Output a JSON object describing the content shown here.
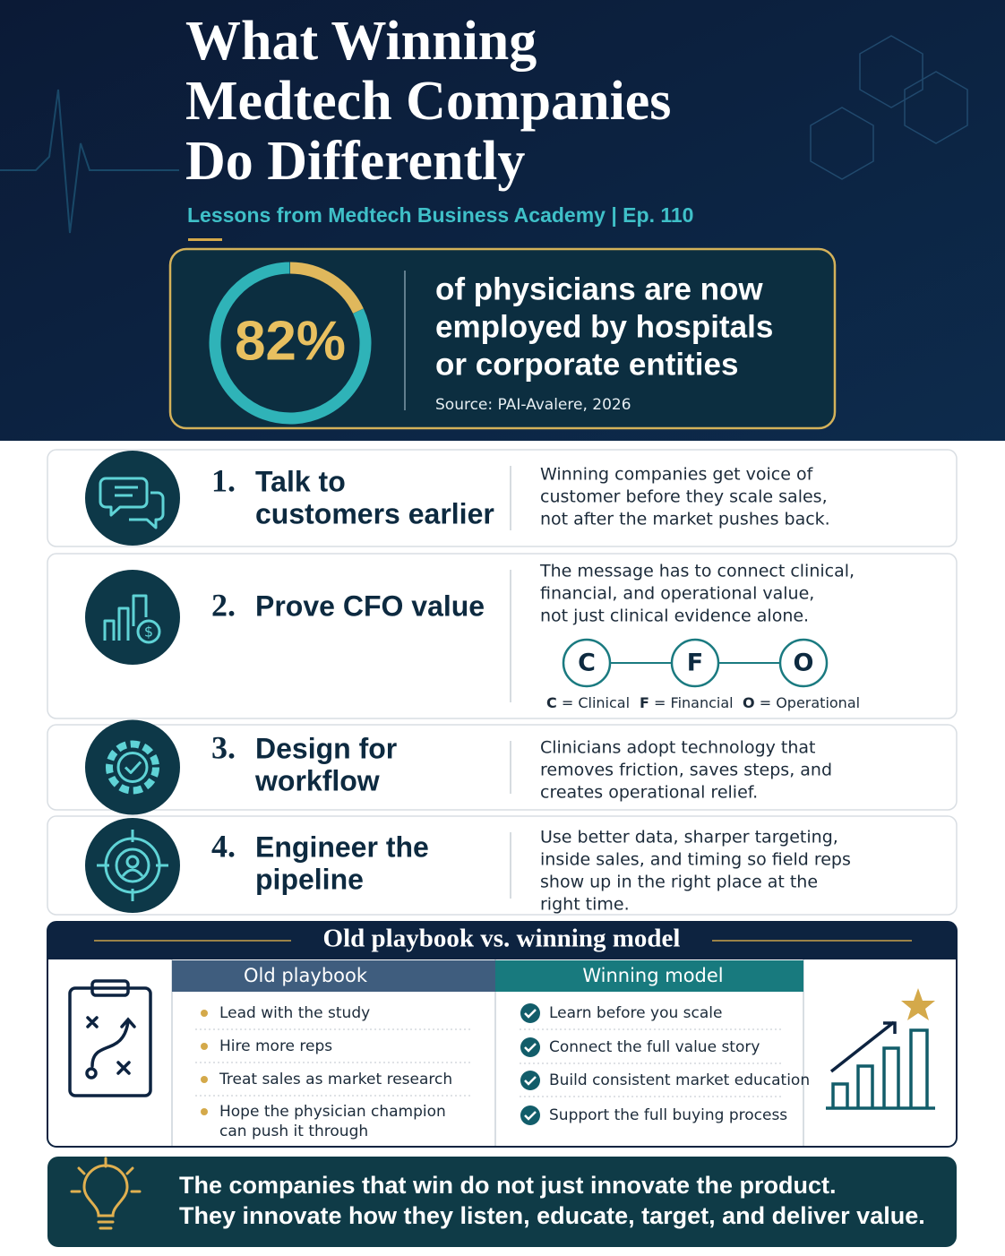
{
  "header": {
    "title_lines": [
      "What Winning",
      "Medtech Companies",
      "Do Differently"
    ],
    "subtitle": "Lessons from Medtech Business Academy | Ep. 110"
  },
  "stat": {
    "value": 82,
    "label": "82%",
    "text_lines": [
      "of physicians are now",
      "employed by hospitals",
      "or corporate entities"
    ],
    "source": "Source: PAI-Avalere, 2026"
  },
  "lessons": [
    {
      "number": "1.",
      "title_lines": [
        "Talk to",
        "customers earlier"
      ],
      "description_lines": [
        "Winning companies get voice of",
        "customer before they scale sales,",
        "not after the market pushes back."
      ]
    },
    {
      "number": "2.",
      "title_lines": [
        "Prove CFO value"
      ],
      "description_lines": [
        "The message has to connect clinical,",
        "financial, and operational value,",
        "not just clinical evidence alone."
      ]
    },
    {
      "number": "3.",
      "title_lines": [
        "Design for",
        "workflow"
      ],
      "description_lines": [
        "Clinicians adopt technology that",
        "removes friction, saves steps, and",
        "creates operational relief."
      ]
    },
    {
      "number": "4.",
      "title_lines": [
        "Engineer the",
        "pipeline"
      ],
      "description_lines": [
        "Use better data, sharper targeting,",
        "inside sales, and timing so field reps",
        "show up in the right place at the",
        "right time."
      ]
    }
  ],
  "cfo": {
    "letters": [
      "C",
      "F",
      "O"
    ],
    "legend": [
      {
        "key": "C",
        "label": "= Clinical"
      },
      {
        "key": "F",
        "label": "= Financial"
      },
      {
        "key": "O",
        "label": "= Operational"
      }
    ]
  },
  "comparison": {
    "title": "Old playbook vs. winning model",
    "old": {
      "heading": "Old playbook",
      "items": [
        [
          "Lead with the study"
        ],
        [
          "Hire more reps"
        ],
        [
          "Treat sales as market research"
        ],
        [
          "Hope the physician champion",
          "can push it through"
        ]
      ]
    },
    "winning": {
      "heading": "Winning model",
      "items": [
        [
          "Learn before you scale"
        ],
        [
          "Connect the full value story"
        ],
        [
          "Build consistent market education"
        ],
        [
          "Support the full buying process"
        ]
      ]
    }
  },
  "takeaway": {
    "lines": [
      "The companies that win do not just innovate the product.",
      "They innovate how they listen, educate, target, and deliver value."
    ]
  }
}
